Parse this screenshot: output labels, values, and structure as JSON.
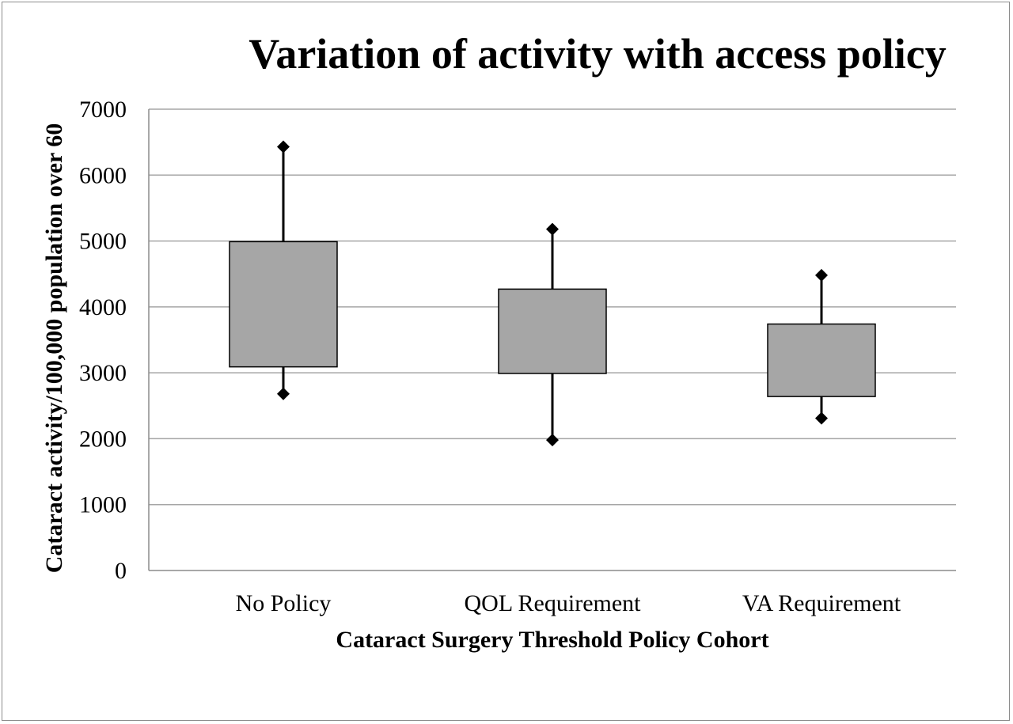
{
  "chart_data": {
    "type": "box",
    "title": "Variation of activity with access policy",
    "xlabel": "Cataract Surgery Threshold Policy Cohort",
    "ylabel": "Cataract activity/100,000 population over 60",
    "ylim": [
      0,
      7000
    ],
    "yticks": [
      "0",
      "1000",
      "2000",
      "3000",
      "4000",
      "5000",
      "6000",
      "7000"
    ],
    "grid": true,
    "legend": "none",
    "categories": [
      "No Policy",
      "QOL Requirement",
      "VA Requirement"
    ],
    "boxes": [
      {
        "category": "No Policy",
        "min": 2680,
        "q1": 3090,
        "q3": 4990,
        "max": 6430
      },
      {
        "category": "QOL Requirement",
        "min": 1980,
        "q1": 2990,
        "q3": 4270,
        "max": 5180
      },
      {
        "category": "VA Requirement",
        "min": 2310,
        "q1": 2640,
        "q3": 3740,
        "max": 4480
      }
    ],
    "colors": {
      "box_fill": "#a6a6a6",
      "box_stroke": "#000000",
      "gridline": "#a6a6a6",
      "axis": "#8c8c8c"
    }
  }
}
